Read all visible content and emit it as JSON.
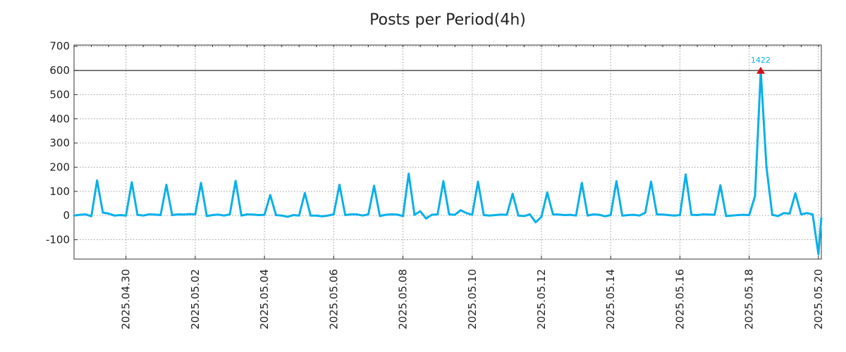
{
  "chart_data": {
    "type": "line",
    "title": "Posts per Period(4h)",
    "xlabel": "",
    "ylabel": "",
    "ylim": [
      -180,
      705
    ],
    "xlim": [
      "2025-04-28 12:00",
      "2025-05-20 02:00"
    ],
    "y_ticks": [
      700,
      600,
      500,
      400,
      300,
      200,
      100,
      0,
      -100
    ],
    "x_ticks": [
      "2025.04.30",
      "2025.05.02",
      "2025.05.04",
      "2025.05.06",
      "2025.05.08",
      "2025.05.10",
      "2025.05.12",
      "2025.05.14",
      "2025.05.16",
      "2025.05.18",
      "2025.05.20"
    ],
    "grid": true,
    "reference_line": 600,
    "series": [
      {
        "color": "#08b0ea",
        "points": [
          [
            "2025-04-28 12:00",
            0
          ],
          [
            "2025-04-28 16:00",
            3
          ],
          [
            "2025-04-28 20:00",
            5
          ],
          [
            "2025-04-29 00:00",
            -3
          ],
          [
            "2025-04-29 04:00",
            145
          ],
          [
            "2025-04-29 08:00",
            12
          ],
          [
            "2025-04-29 12:00",
            8
          ],
          [
            "2025-04-29 16:00",
            0
          ],
          [
            "2025-04-29 20:00",
            2
          ],
          [
            "2025-04-30 00:00",
            0
          ],
          [
            "2025-04-30 04:00",
            138
          ],
          [
            "2025-04-30 08:00",
            3
          ],
          [
            "2025-04-30 12:00",
            0
          ],
          [
            "2025-04-30 16:00",
            5
          ],
          [
            "2025-04-30 20:00",
            4
          ],
          [
            "2025-05-01 00:00",
            2
          ],
          [
            "2025-05-01 04:00",
            127
          ],
          [
            "2025-05-01 08:00",
            2
          ],
          [
            "2025-05-01 12:00",
            5
          ],
          [
            "2025-05-01 16:00",
            4
          ],
          [
            "2025-05-01 20:00",
            6
          ],
          [
            "2025-05-02 00:00",
            5
          ],
          [
            "2025-05-02 04:00",
            135
          ],
          [
            "2025-05-02 08:00",
            -2
          ],
          [
            "2025-05-02 12:00",
            2
          ],
          [
            "2025-05-02 16:00",
            4
          ],
          [
            "2025-05-02 20:00",
            0
          ],
          [
            "2025-05-03 00:00",
            5
          ],
          [
            "2025-05-03 04:00",
            143
          ],
          [
            "2025-05-03 08:00",
            0
          ],
          [
            "2025-05-03 12:00",
            5
          ],
          [
            "2025-05-03 16:00",
            4
          ],
          [
            "2025-05-03 20:00",
            2
          ],
          [
            "2025-05-04 00:00",
            3
          ],
          [
            "2025-05-04 04:00",
            85
          ],
          [
            "2025-05-04 08:00",
            2
          ],
          [
            "2025-05-04 12:00",
            0
          ],
          [
            "2025-05-04 16:00",
            -5
          ],
          [
            "2025-05-04 20:00",
            2
          ],
          [
            "2025-05-05 00:00",
            0
          ],
          [
            "2025-05-05 04:00",
            93
          ],
          [
            "2025-05-05 08:00",
            0
          ],
          [
            "2025-05-05 12:00",
            0
          ],
          [
            "2025-05-05 16:00",
            -3
          ],
          [
            "2025-05-05 20:00",
            0
          ],
          [
            "2025-05-06 00:00",
            5
          ],
          [
            "2025-05-06 04:00",
            127
          ],
          [
            "2025-05-06 08:00",
            2
          ],
          [
            "2025-05-06 12:00",
            5
          ],
          [
            "2025-05-06 16:00",
            5
          ],
          [
            "2025-05-06 20:00",
            0
          ],
          [
            "2025-05-07 00:00",
            5
          ],
          [
            "2025-05-07 04:00",
            123
          ],
          [
            "2025-05-07 08:00",
            -2
          ],
          [
            "2025-05-07 12:00",
            3
          ],
          [
            "2025-05-07 16:00",
            5
          ],
          [
            "2025-05-07 20:00",
            4
          ],
          [
            "2025-05-08 00:00",
            -2
          ],
          [
            "2025-05-08 04:00",
            173
          ],
          [
            "2025-05-08 08:00",
            3
          ],
          [
            "2025-05-08 12:00",
            18
          ],
          [
            "2025-05-08 16:00",
            -12
          ],
          [
            "2025-05-08 20:00",
            3
          ],
          [
            "2025-05-09 00:00",
            5
          ],
          [
            "2025-05-09 04:00",
            142
          ],
          [
            "2025-05-09 08:00",
            5
          ],
          [
            "2025-05-09 12:00",
            3
          ],
          [
            "2025-05-09 16:00",
            22
          ],
          [
            "2025-05-09 20:00",
            10
          ],
          [
            "2025-05-10 00:00",
            3
          ],
          [
            "2025-05-10 04:00",
            140
          ],
          [
            "2025-05-10 08:00",
            2
          ],
          [
            "2025-05-10 12:00",
            0
          ],
          [
            "2025-05-10 16:00",
            2
          ],
          [
            "2025-05-10 20:00",
            4
          ],
          [
            "2025-05-11 00:00",
            3
          ],
          [
            "2025-05-11 04:00",
            90
          ],
          [
            "2025-05-11 08:00",
            0
          ],
          [
            "2025-05-11 12:00",
            -2
          ],
          [
            "2025-05-11 16:00",
            5
          ],
          [
            "2025-05-11 20:00",
            -28
          ],
          [
            "2025-05-12 00:00",
            -5
          ],
          [
            "2025-05-12 04:00",
            95
          ],
          [
            "2025-05-12 08:00",
            5
          ],
          [
            "2025-05-12 12:00",
            4
          ],
          [
            "2025-05-12 16:00",
            2
          ],
          [
            "2025-05-12 20:00",
            3
          ],
          [
            "2025-05-13 00:00",
            0
          ],
          [
            "2025-05-13 04:00",
            135
          ],
          [
            "2025-05-13 08:00",
            0
          ],
          [
            "2025-05-13 12:00",
            5
          ],
          [
            "2025-05-13 16:00",
            3
          ],
          [
            "2025-05-13 20:00",
            -3
          ],
          [
            "2025-05-14 00:00",
            2
          ],
          [
            "2025-05-14 04:00",
            142
          ],
          [
            "2025-05-14 08:00",
            0
          ],
          [
            "2025-05-14 12:00",
            2
          ],
          [
            "2025-05-14 16:00",
            3
          ],
          [
            "2025-05-14 20:00",
            0
          ],
          [
            "2025-05-15 00:00",
            12
          ],
          [
            "2025-05-15 04:00",
            140
          ],
          [
            "2025-05-15 08:00",
            5
          ],
          [
            "2025-05-15 12:00",
            4
          ],
          [
            "2025-05-15 16:00",
            2
          ],
          [
            "2025-05-15 20:00",
            0
          ],
          [
            "2025-05-16 00:00",
            2
          ],
          [
            "2025-05-16 04:00",
            170
          ],
          [
            "2025-05-16 08:00",
            3
          ],
          [
            "2025-05-16 12:00",
            2
          ],
          [
            "2025-05-16 16:00",
            5
          ],
          [
            "2025-05-16 20:00",
            4
          ],
          [
            "2025-05-17 00:00",
            3
          ],
          [
            "2025-05-17 04:00",
            125
          ],
          [
            "2025-05-17 08:00",
            -2
          ],
          [
            "2025-05-17 12:00",
            0
          ],
          [
            "2025-05-17 16:00",
            2
          ],
          [
            "2025-05-17 20:00",
            3
          ],
          [
            "2025-05-18 00:00",
            2
          ],
          [
            "2025-05-18 04:00",
            80
          ],
          [
            "2025-05-18 08:00",
            598
          ],
          [
            "2025-05-18 12:00",
            200
          ],
          [
            "2025-05-18 16:00",
            3
          ],
          [
            "2025-05-18 20:00",
            -2
          ],
          [
            "2025-05-19 00:00",
            10
          ],
          [
            "2025-05-19 04:00",
            8
          ],
          [
            "2025-05-19 08:00",
            92
          ],
          [
            "2025-05-19 12:00",
            5
          ],
          [
            "2025-05-19 16:00",
            10
          ],
          [
            "2025-05-19 20:00",
            5
          ],
          [
            "2025-05-20 00:00",
            -160
          ],
          [
            "2025-05-20 02:00",
            -10
          ]
        ]
      }
    ],
    "annotations": [
      {
        "label": "1422",
        "x": "2025-05-18 08:00",
        "y": 598,
        "marker": "triangle",
        "marker_color": "#d0101a",
        "label_color": "#08b0ea"
      }
    ]
  }
}
